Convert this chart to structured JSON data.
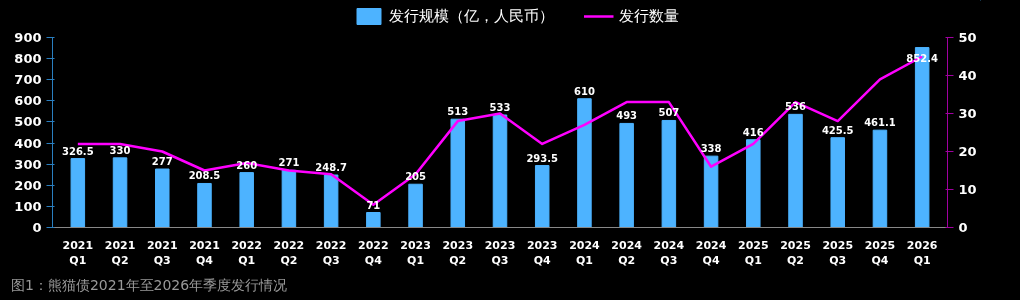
{
  "chart_data": {
    "type": "bar",
    "categories": [
      "2021 Q1",
      "2021 Q2",
      "2021 Q3",
      "2021 Q4",
      "2022 Q1",
      "2022 Q2",
      "2022 Q3",
      "2022 Q4",
      "2023 Q1",
      "2023 Q2",
      "2023 Q3",
      "2023 Q4",
      "2024 Q1",
      "2024 Q2",
      "2024 Q3",
      "2024 Q4",
      "2025 Q1",
      "2025 Q2",
      "2025 Q3",
      "2025 Q4",
      "2026 Q1"
    ],
    "series": [
      {
        "name": "发行规模（亿，人民币）",
        "color": "#4db3ff",
        "values": [
          326.5,
          330,
          277,
          208.5,
          260,
          271,
          248.7,
          71,
          205,
          513,
          533,
          293.5,
          610,
          493,
          507,
          338,
          416,
          536,
          425.5,
          461.1,
          852.4
        ],
        "value_labels": [
          "326.5",
          "330",
          "277",
          "208.5",
          "260",
          "271",
          "248.7",
          "71",
          "205",
          "513",
          "533",
          "293.5",
          "610",
          "493",
          "507",
          "338",
          "416",
          "536",
          "425.5",
          "461.1",
          "852.4"
        ]
      },
      {
        "name": "发行数量",
        "type": "line",
        "axis": "y2",
        "color": "#ff00ff",
        "values": [
          22,
          22,
          20,
          15,
          17,
          15,
          14,
          6,
          14,
          28,
          30,
          22,
          27,
          33,
          33,
          16,
          22,
          33,
          28,
          39,
          45
        ]
      }
    ],
    "ylim": [
      0,
      900
    ],
    "yticks": [
      0,
      100,
      200,
      300,
      400,
      500,
      600,
      700,
      800,
      900
    ],
    "y2lim": [
      0,
      50
    ],
    "y2ticks": [
      0,
      10,
      20,
      30,
      40,
      50
    ],
    "legend": "top",
    "grid": false,
    "marker": "none",
    "annotations": [
      "图1：熊猫债2021年至2026年季度发行情况"
    ]
  }
}
